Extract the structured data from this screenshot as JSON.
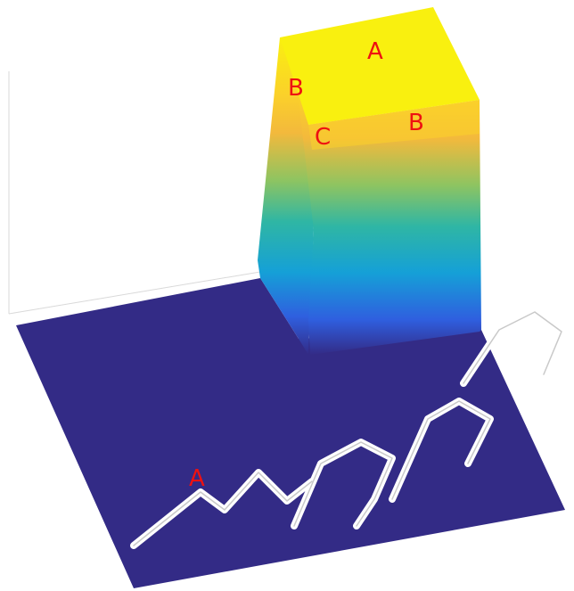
{
  "colors": {
    "floor": "#332b86",
    "block_top": "#f9f00f",
    "label": "#ee1111",
    "watermark": "#c9c9c9",
    "axis_line": "#d9d9d9"
  },
  "labels": {
    "top_a": "A",
    "top_b_left": "B",
    "top_b_right": "B",
    "top_c": "C",
    "floor_a": "A"
  }
}
